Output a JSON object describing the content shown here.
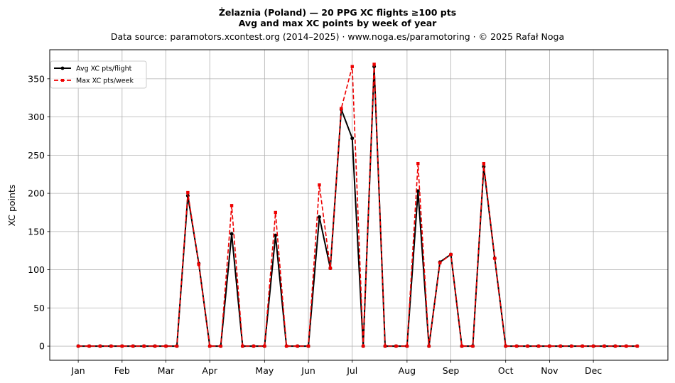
{
  "chart_data": {
    "type": "line",
    "title_line1": "Żelaznia (Poland)  —  20 PPG XC flights ≥100 pts",
    "title_line2": "Avg and max XC points by week of year",
    "subtitle": "Data source: paramotors.xcontest.org (2014–2025)  ·  www.noga.es/paramotoring  ·  © 2025 Rafał Noga",
    "xlabel": "",
    "ylabel": "XC points",
    "xlim": [
      -2.6,
      53.8
    ],
    "ylim": [
      -18.5,
      388
    ],
    "yticks": [
      0,
      50,
      100,
      150,
      200,
      250,
      300,
      350
    ],
    "xticks": [
      {
        "pos": 0,
        "label": "Jan"
      },
      {
        "pos": 4,
        "label": "Feb"
      },
      {
        "pos": 8,
        "label": "Mar"
      },
      {
        "pos": 12,
        "label": "Apr"
      },
      {
        "pos": 17,
        "label": "May"
      },
      {
        "pos": 21,
        "label": "Jun"
      },
      {
        "pos": 25,
        "label": "Jul"
      },
      {
        "pos": 30,
        "label": "Aug"
      },
      {
        "pos": 34,
        "label": "Sep"
      },
      {
        "pos": 39,
        "label": "Oct"
      },
      {
        "pos": 43,
        "label": "Nov"
      },
      {
        "pos": 47,
        "label": "Dec"
      }
    ],
    "grid": true,
    "legend_position": "top-left",
    "x": [
      0,
      1,
      2,
      3,
      4,
      5,
      6,
      7,
      8,
      9,
      10,
      11,
      12,
      13,
      14,
      15,
      16,
      17,
      18,
      19,
      20,
      21,
      22,
      23,
      24,
      25,
      26,
      27,
      28,
      29,
      30,
      31,
      32,
      33,
      34,
      35,
      36,
      37,
      38,
      39,
      40,
      41,
      42,
      43,
      44,
      45,
      46,
      47,
      48,
      49,
      50,
      51
    ],
    "series": [
      {
        "name": "Avg XC pts/flight",
        "color": "#000000",
        "style": "solid-circle",
        "values": [
          0,
          0,
          0,
          0,
          0,
          0,
          0,
          0,
          0,
          0,
          197,
          108,
          0,
          0,
          147,
          0,
          0,
          0,
          145,
          0,
          0,
          0,
          169,
          102,
          310,
          272,
          0,
          366,
          0,
          0,
          0,
          203,
          0,
          110,
          120,
          0,
          0,
          235,
          115,
          0,
          0,
          0,
          0,
          0,
          0,
          0,
          0,
          0,
          0,
          0,
          0,
          0
        ]
      },
      {
        "name": "Max XC pts/week",
        "color": "#ee0000",
        "style": "dashed-square",
        "values": [
          0,
          0,
          0,
          0,
          0,
          0,
          0,
          0,
          0,
          0,
          201,
          107,
          0,
          0,
          184,
          0,
          0,
          0,
          175,
          0,
          0,
          0,
          211,
          102,
          311,
          366,
          0,
          369,
          0,
          0,
          0,
          239,
          0,
          109,
          120,
          0,
          0,
          239,
          115,
          0,
          0,
          0,
          0,
          0,
          0,
          0,
          0,
          0,
          0,
          0,
          0,
          0
        ]
      }
    ]
  }
}
